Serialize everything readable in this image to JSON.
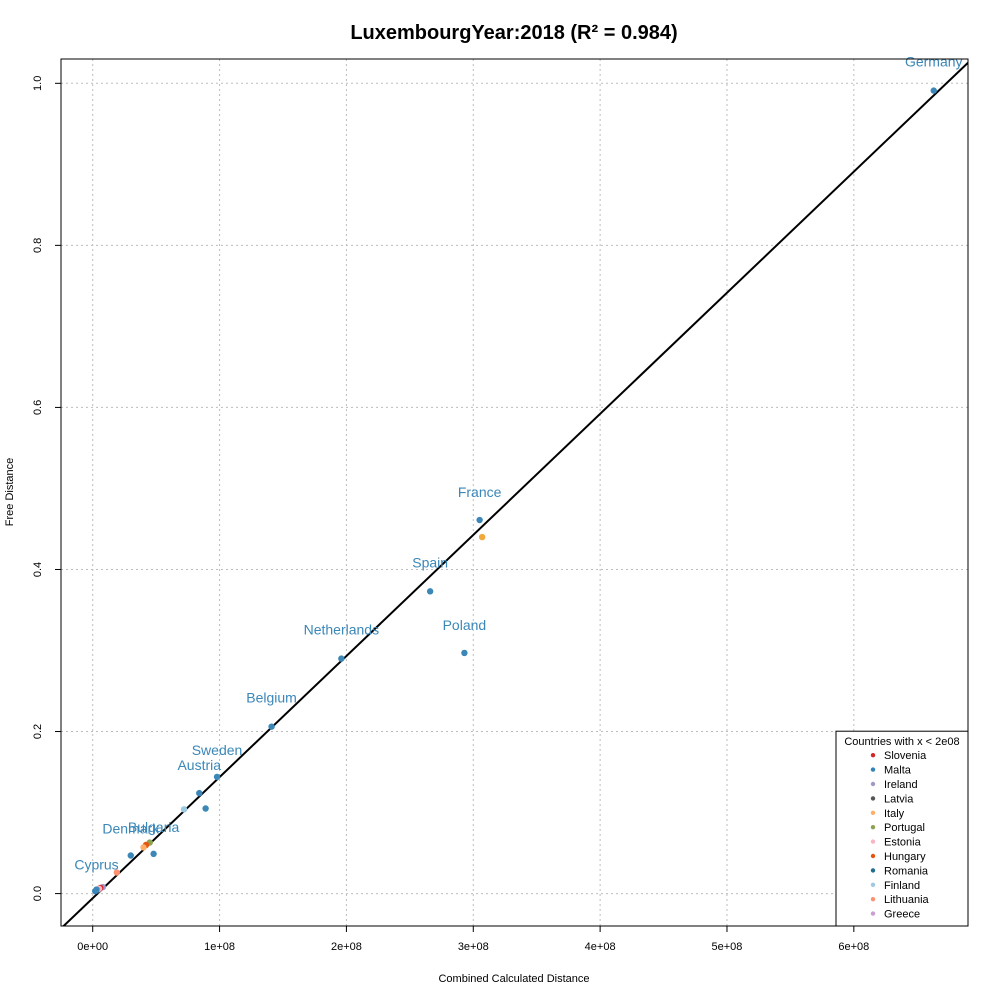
{
  "chart_data": {
    "type": "scatter",
    "title": "LuxembourgYear:2018 (R² = 0.984)",
    "xlabel": "Combined Calculated Distance",
    "ylabel": "Free Distance",
    "xlim": [
      -25000000,
      690000000
    ],
    "ylim": [
      -0.04,
      1.03
    ],
    "x_ticks": [
      0,
      100000000,
      200000000,
      300000000,
      400000000,
      500000000,
      600000000
    ],
    "x_tick_labels": [
      "0e+00",
      "1e+08",
      "2e+08",
      "3e+08",
      "4e+08",
      "5e+08",
      "6e+08"
    ],
    "y_ticks": [
      0.0,
      0.2,
      0.4,
      0.6,
      0.8,
      1.0
    ],
    "y_tick_labels": [
      "0.0",
      "0.2",
      "0.4",
      "0.6",
      "0.8",
      "1.0"
    ],
    "grid": true,
    "regression_line": {
      "slope": 1.4944e-09,
      "intercept": -0.0057,
      "color": "#000000"
    },
    "labeled_points": [
      {
        "name": "Germany",
        "x": 663000000,
        "y": 0.991,
        "color": "#3a87b8"
      },
      {
        "name": "France",
        "x": 305000000,
        "y": 0.461,
        "color": "#3a87b8"
      },
      {
        "name": "Spain",
        "x": 266000000,
        "y": 0.373,
        "color": "#3a87b8"
      },
      {
        "name": "Poland",
        "x": 293000000,
        "y": 0.297,
        "color": "#3a87b8"
      },
      {
        "name": "Netherlands",
        "x": 196000000,
        "y": 0.29,
        "color": "#3a87b8"
      },
      {
        "name": "Belgium",
        "x": 141000000,
        "y": 0.206,
        "color": "#3a87b8"
      },
      {
        "name": "Sweden",
        "x": 98000000,
        "y": 0.144,
        "color": "#3a87b8"
      },
      {
        "name": "Austria",
        "x": 84000000,
        "y": 0.124,
        "color": "#3a87b8"
      },
      {
        "name": "Denmark",
        "x": 30000000,
        "y": 0.047,
        "color": "#3a87b8"
      },
      {
        "name": "Bulgaria",
        "x": 48000000,
        "y": 0.049,
        "color": "#3a87b8"
      },
      {
        "name": "Cyprus",
        "x": 3000000,
        "y": 0.005,
        "color": "#3a87b8"
      }
    ],
    "other_points": [
      {
        "x": 89000000,
        "y": 0.105,
        "color": "#3a87b8"
      },
      {
        "x": 307000000,
        "y": 0.44,
        "color": "#f2a93b"
      },
      {
        "x": 72000000,
        "y": 0.104,
        "color": "#9ecae1"
      },
      {
        "x": 45000000,
        "y": 0.063,
        "color": "#8ca252"
      },
      {
        "x": 42000000,
        "y": 0.06,
        "color": "#e6550d"
      },
      {
        "x": 40000000,
        "y": 0.057,
        "color": "#fdae6b"
      },
      {
        "x": 19000000,
        "y": 0.026,
        "color": "#fc9272"
      },
      {
        "x": 8000000,
        "y": 0.008,
        "color": "#9e9ac8"
      },
      {
        "x": 6000000,
        "y": 0.007,
        "color": "#d62728"
      },
      {
        "x": 4000000,
        "y": 0.004,
        "color": "#555555"
      },
      {
        "x": 2000000,
        "y": 0.003,
        "color": "#3182bd"
      },
      {
        "x": 5000000,
        "y": 0.006,
        "color": "#fbb4c4"
      }
    ],
    "legend": {
      "title": "Countries with x < 2e08",
      "position": "bottom-right",
      "items": [
        {
          "label": "Slovenia",
          "color": "#d62728"
        },
        {
          "label": "Malta",
          "color": "#3182bd"
        },
        {
          "label": "Ireland",
          "color": "#9e9ac8"
        },
        {
          "label": "Latvia",
          "color": "#555555"
        },
        {
          "label": "Italy",
          "color": "#fdae6b"
        },
        {
          "label": "Portugal",
          "color": "#8ca252"
        },
        {
          "label": "Estonia",
          "color": "#fbb4c4"
        },
        {
          "label": "Hungary",
          "color": "#e6550d"
        },
        {
          "label": "Romania",
          "color": "#1f6f8b"
        },
        {
          "label": "Finland",
          "color": "#9ecae1"
        },
        {
          "label": "Lithuania",
          "color": "#fc9272"
        },
        {
          "label": "Greece",
          "color": "#c9a0d1"
        }
      ]
    }
  }
}
